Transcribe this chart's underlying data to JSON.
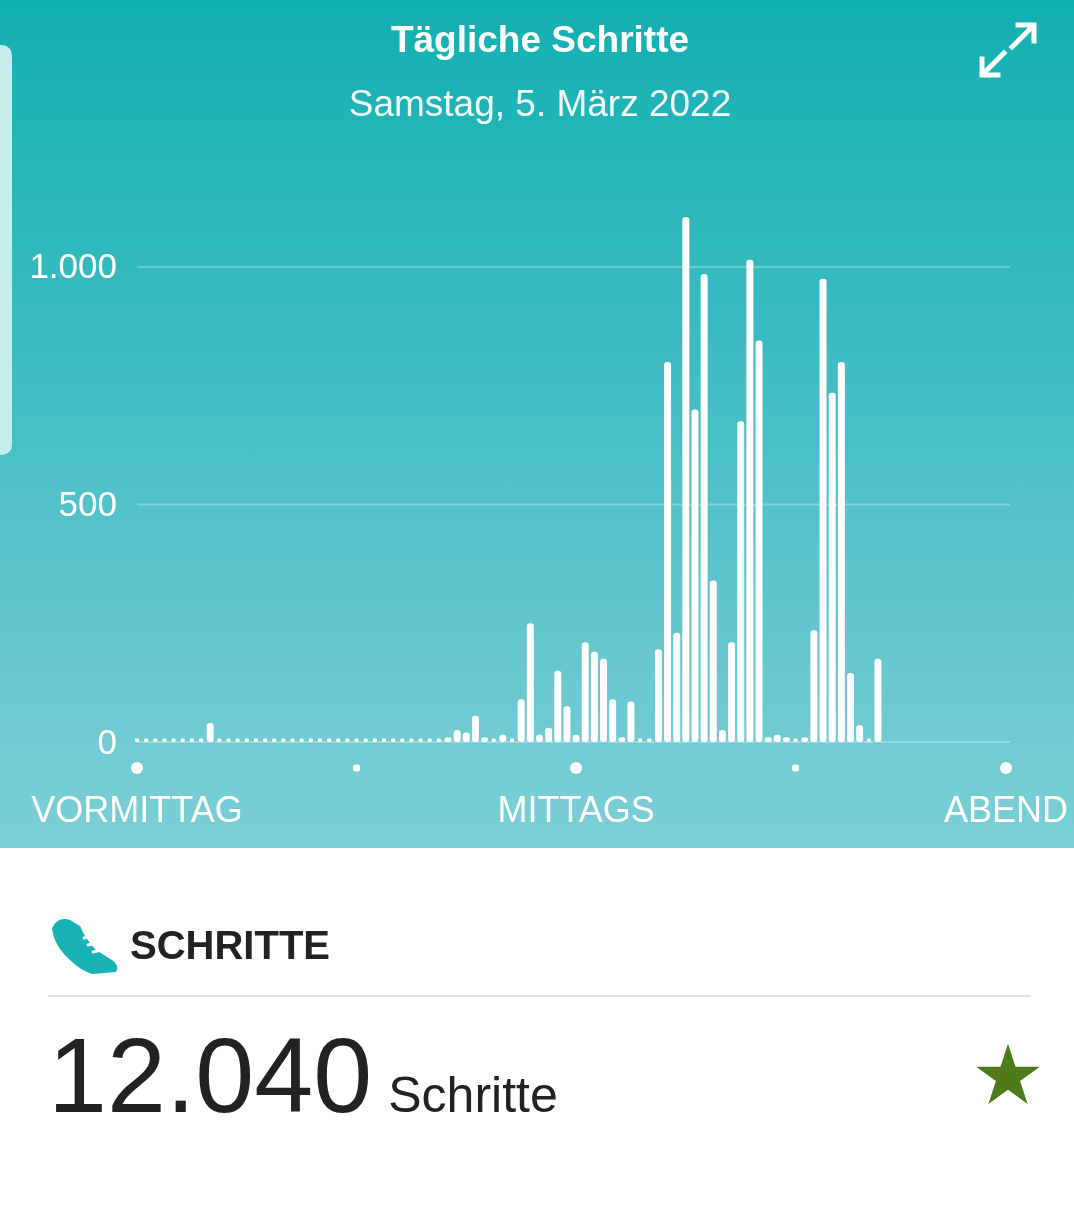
{
  "chart_data": [
    {
      "type": "bar",
      "title": "Tägliche Schritte",
      "subtitle": "Samstag, 5. März 2022",
      "categories": [
        "VORMITTAG",
        null,
        null,
        null,
        null,
        null,
        null,
        null,
        null,
        null,
        null,
        null,
        null,
        null,
        null,
        null,
        null,
        null,
        null,
        null,
        null,
        null,
        null,
        null,
        null,
        null,
        null,
        null,
        null,
        null,
        null,
        null,
        null,
        null,
        null,
        null,
        null,
        null,
        null,
        null,
        null,
        null,
        null,
        null,
        null,
        null,
        null,
        null,
        "MITTAGS",
        null,
        null,
        null,
        null,
        null,
        null,
        null,
        null,
        null,
        null,
        null,
        null,
        null,
        null,
        null,
        null,
        null,
        null,
        null,
        null,
        null,
        null,
        null,
        null,
        null,
        null,
        null,
        null,
        null,
        null,
        null,
        null,
        null,
        null,
        null,
        null,
        null,
        null,
        null,
        null,
        null,
        null,
        null,
        null,
        null,
        null,
        "ABEND"
      ],
      "values": [
        0,
        0,
        0,
        0,
        0,
        0,
        0,
        0,
        40,
        0,
        0,
        0,
        0,
        0,
        0,
        0,
        0,
        0,
        0,
        0,
        0,
        0,
        0,
        0,
        0,
        0,
        0,
        0,
        0,
        0,
        0,
        0,
        0,
        0,
        10,
        25,
        20,
        55,
        10,
        0,
        15,
        0,
        90,
        250,
        15,
        30,
        150,
        75,
        15,
        210,
        190,
        175,
        90,
        10,
        85,
        0,
        0,
        195,
        800,
        230,
        1105,
        700,
        985,
        340,
        25,
        210,
        675,
        1015,
        845,
        10,
        15,
        10,
        0,
        10,
        235,
        975,
        735,
        800,
        145,
        35,
        0,
        175,
        null,
        null,
        null,
        null,
        null,
        null,
        null,
        null,
        null,
        null,
        null,
        null,
        null,
        null
      ],
      "color": "#ffffff",
      "ylim": [
        0,
        1105
      ],
      "yticks": [
        0,
        500,
        {
          "value": 1000,
          "label": "1.000"
        }
      ],
      "grid": "y"
    },
    {
      "type": "other",
      "title": "SCHRITTE",
      "annotations": [
        "12.040",
        "Schritte"
      ]
    }
  ]
}
